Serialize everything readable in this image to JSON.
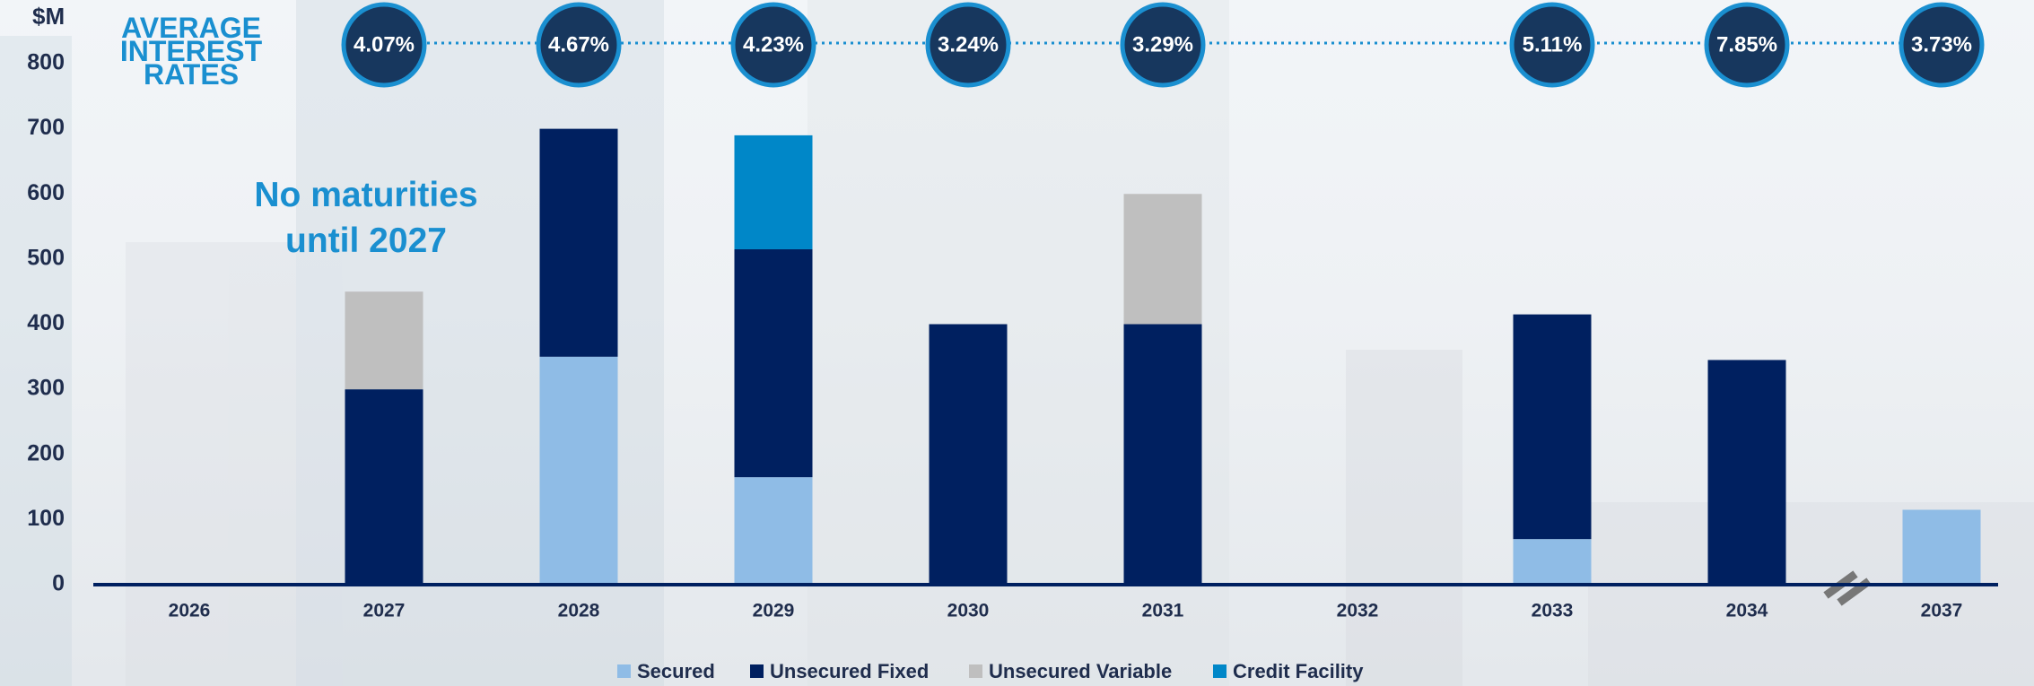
{
  "chart_data": {
    "type": "bar",
    "stacked": true,
    "y_label": "$M",
    "annotation": "No maturities until 2027",
    "categories": [
      "2026",
      "2027",
      "2028",
      "2029",
      "2030",
      "2031",
      "2032",
      "2033",
      "2034",
      "2037"
    ],
    "series": [
      {
        "name": "Secured",
        "color": "#8fbce6",
        "values": [
          null,
          null,
          350,
          165,
          null,
          null,
          null,
          70,
          null,
          115
        ]
      },
      {
        "name": "Unsecured Fixed",
        "color": "#002060",
        "values": [
          null,
          300,
          350,
          350,
          400,
          400,
          null,
          345,
          345,
          null
        ]
      },
      {
        "name": "Unsecured Variable",
        "color": "#bfbfbf",
        "values": [
          null,
          150,
          null,
          null,
          null,
          200,
          null,
          null,
          null,
          null
        ]
      },
      {
        "name": "Credit Facility",
        "color": "#0087c8",
        "values": [
          null,
          null,
          null,
          175,
          null,
          null,
          null,
          null,
          null,
          null
        ]
      }
    ],
    "rates": {
      "label": "AVERAGE INTEREST RATES",
      "values": [
        null,
        4.07,
        4.67,
        4.23,
        3.24,
        3.29,
        null,
        5.11,
        7.85,
        3.73
      ],
      "value_labels": [
        null,
        "4.07%",
        "4.67%",
        "4.23%",
        "3.24%",
        "3.29%",
        null,
        "5.11%",
        "7.85%",
        "3.73%"
      ]
    },
    "ylim": [
      0,
      800
    ],
    "yticks": [
      0,
      100,
      200,
      300,
      400,
      500,
      600,
      700,
      800
    ]
  }
}
